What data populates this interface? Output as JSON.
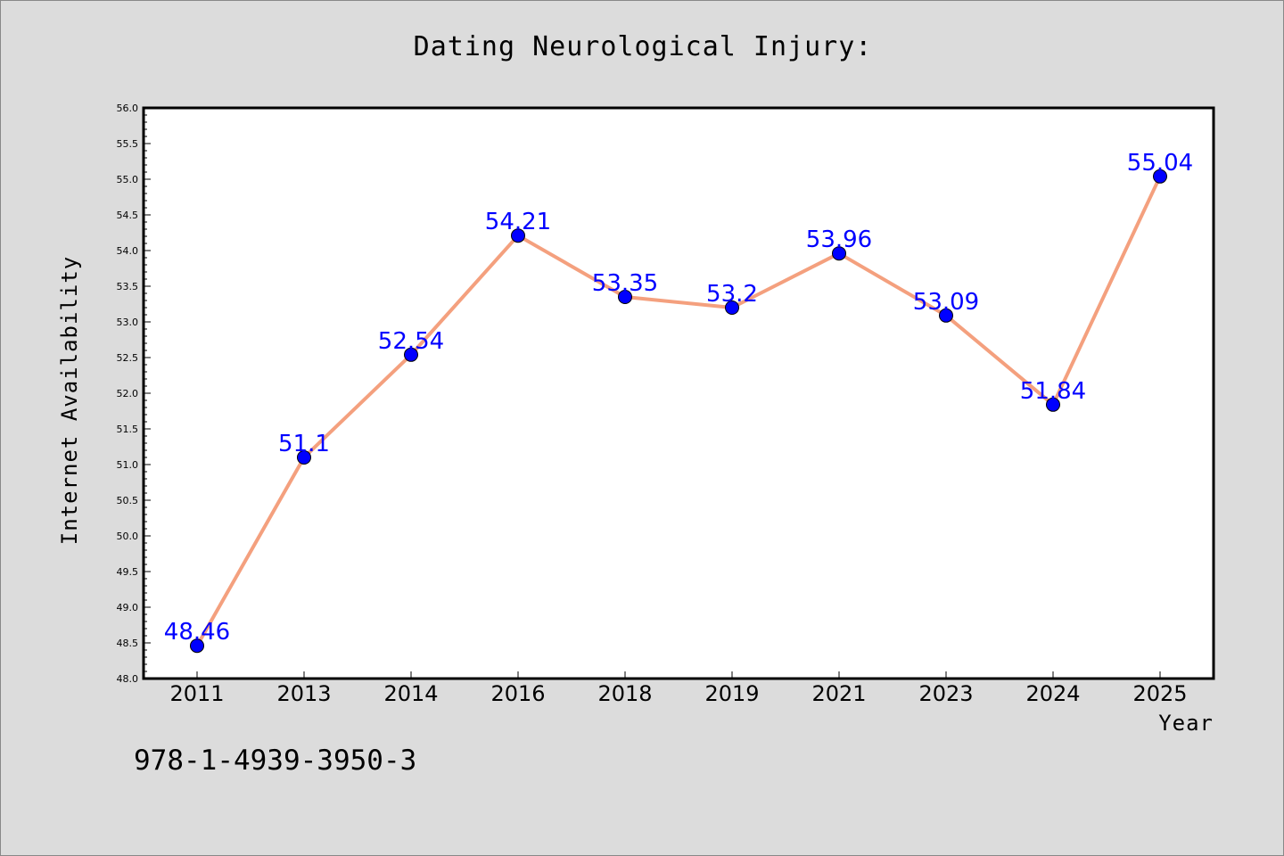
{
  "title": "Dating Neurological Injury:",
  "footnote": "978-1-4939-3950-3",
  "colors": {
    "line": "#f4a07e",
    "marker": "#0000ff",
    "data_label": "#0000ff",
    "background": "#dcdcdc",
    "plot_background": "#ffffff"
  },
  "chart_data": {
    "type": "line",
    "title": "Dating Neurological Injury:",
    "xlabel": "Year",
    "ylabel": "Internet Availability",
    "categories": [
      "2011",
      "2013",
      "2014",
      "2016",
      "2018",
      "2019",
      "2021",
      "2023",
      "2024",
      "2025"
    ],
    "series": [
      {
        "values": [
          48.46,
          51.1,
          52.54,
          54.21,
          53.35,
          53.2,
          53.96,
          53.09,
          51.84,
          55.04
        ]
      }
    ],
    "data_labels": [
      "48.46",
      "51.1",
      "52.54",
      "54.21",
      "53.35",
      "53.2",
      "53.96",
      "53.09",
      "51.84",
      "55.04"
    ],
    "ylim": [
      48.0,
      56.0
    ],
    "y_ticks": [
      "48.0",
      "48.5",
      "49.0",
      "49.5",
      "50.0",
      "50.5",
      "51.0",
      "51.5",
      "52.0",
      "52.5",
      "53.0",
      "53.5",
      "54.0",
      "54.5",
      "55.0",
      "55.5",
      "56.0"
    ],
    "grid": false,
    "legend": "none"
  }
}
